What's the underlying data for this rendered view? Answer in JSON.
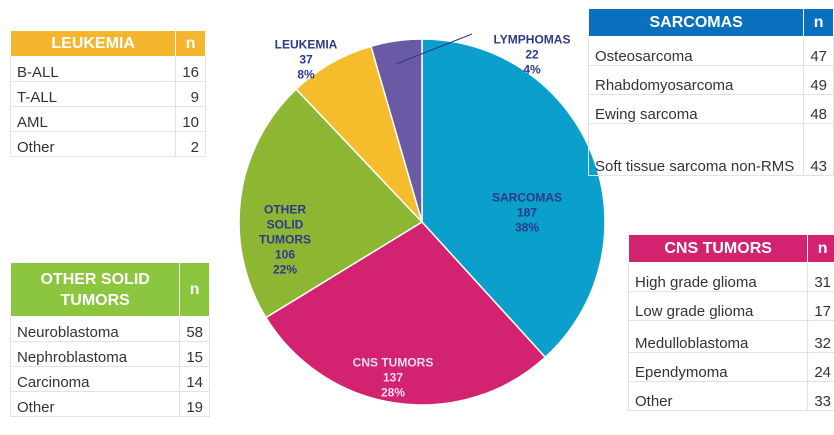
{
  "chart_data": {
    "type": "pie",
    "categories": [
      "SARCOMAS",
      "CNS TUMORS",
      "OTHER SOLID TUMORS",
      "LEUKEMIA",
      "LYMPHOMAS"
    ],
    "values": [
      187,
      137,
      106,
      37,
      22
    ],
    "percent_labels": [
      "38%",
      "28%",
      "22%",
      "8%",
      "4%"
    ],
    "colors": [
      "#0b9fcb",
      "#d3226f",
      "#8db632",
      "#f5bd2c",
      "#6a5aa6"
    ]
  },
  "tables": [
    {
      "title": "LEUKEMIA",
      "n": "n",
      "color": "#f5b62d",
      "rows": [
        [
          "B-ALL",
          16
        ],
        [
          "T-ALL",
          9
        ],
        [
          "AML",
          10
        ],
        [
          "Other",
          2
        ]
      ]
    },
    {
      "title": "SARCOMAS",
      "n": "n",
      "color": "#0870bd",
      "rows": [
        [
          "Osteosarcoma",
          47
        ],
        [
          "Rhabdomyosarcoma",
          49
        ],
        [
          "Ewing sarcoma",
          48
        ],
        [
          "Soft tissue sarcoma non-RMS",
          43
        ]
      ]
    },
    {
      "title": "CNS TUMORS",
      "n": "n",
      "color": "#d3226f",
      "rows": [
        [
          "High grade glioma",
          31
        ],
        [
          "Low grade glioma",
          17
        ],
        [
          "Medulloblastoma",
          32
        ],
        [
          "Ependymoma",
          24
        ],
        [
          "Other",
          33
        ]
      ]
    },
    {
      "title": "OTHER SOLID TUMORS",
      "n": "n",
      "color": "#8cc63f",
      "rows": [
        [
          "Neuroblastoma",
          58
        ],
        [
          "Nephroblastoma",
          15
        ],
        [
          "Carcinoma",
          14
        ],
        [
          "Other",
          19
        ]
      ]
    }
  ]
}
